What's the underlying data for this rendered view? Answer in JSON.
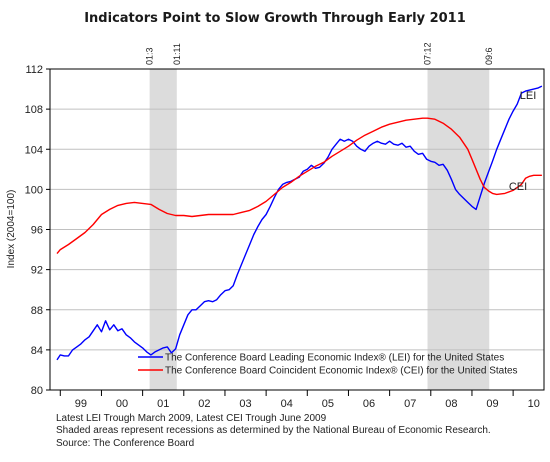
{
  "chart_data": {
    "type": "line",
    "title": "Indicators Point to Slow Growth Through Early 2011",
    "ylabel": "Index (2004=100)",
    "xlabel": "",
    "ylim": [
      80,
      112
    ],
    "y_ticks": [
      80,
      84,
      88,
      92,
      96,
      100,
      104,
      108,
      112
    ],
    "x_range": [
      1998.75,
      2010.75
    ],
    "x_ticks": [
      {
        "label": "99",
        "x": 1999.5
      },
      {
        "label": "00",
        "x": 2000.5
      },
      {
        "label": "01",
        "x": 2001.5
      },
      {
        "label": "02",
        "x": 2002.5
      },
      {
        "label": "03",
        "x": 2003.5
      },
      {
        "label": "04",
        "x": 2004.5
      },
      {
        "label": "05",
        "x": 2005.5
      },
      {
        "label": "06",
        "x": 2006.5
      },
      {
        "label": "07",
        "x": 2007.5
      },
      {
        "label": "08",
        "x": 2008.5
      },
      {
        "label": "09",
        "x": 2009.5
      },
      {
        "label": "10",
        "x": 2010.5
      }
    ],
    "grid": true,
    "recessions": [
      {
        "start": 2001.17,
        "end": 2001.83,
        "start_label": "01:3",
        "end_label": "01:11"
      },
      {
        "start": 2007.92,
        "end": 2009.42,
        "start_label": "07:12",
        "end_label": "09:6"
      }
    ],
    "legend_position": "bottom-right",
    "series": [
      {
        "name": "The Conference Board Leading Economic Index® (LEI) for the United  States",
        "short_label": "LEI",
        "color": "#0000ff",
        "points": [
          [
            1998.92,
            83
          ],
          [
            1999.0,
            83.5
          ],
          [
            1999.1,
            83.4
          ],
          [
            1999.2,
            83.4
          ],
          [
            1999.3,
            84
          ],
          [
            1999.4,
            84.3
          ],
          [
            1999.5,
            84.6
          ],
          [
            1999.6,
            85
          ],
          [
            1999.7,
            85.3
          ],
          [
            1999.8,
            85.9
          ],
          [
            1999.9,
            86.5
          ],
          [
            2000.0,
            85.8
          ],
          [
            2000.1,
            86.9
          ],
          [
            2000.2,
            86
          ],
          [
            2000.3,
            86.5
          ],
          [
            2000.4,
            85.9
          ],
          [
            2000.5,
            86.1
          ],
          [
            2000.6,
            85.5
          ],
          [
            2000.7,
            85.2
          ],
          [
            2000.8,
            84.8
          ],
          [
            2000.9,
            84.5
          ],
          [
            2001.0,
            84.2
          ],
          [
            2001.1,
            83.8
          ],
          [
            2001.2,
            83.5
          ],
          [
            2001.3,
            83.8
          ],
          [
            2001.4,
            84
          ],
          [
            2001.5,
            84.2
          ],
          [
            2001.6,
            84.3
          ],
          [
            2001.7,
            83.7
          ],
          [
            2001.8,
            84.1
          ],
          [
            2001.9,
            85.5
          ],
          [
            2002.0,
            86.5
          ],
          [
            2002.1,
            87.5
          ],
          [
            2002.2,
            88
          ],
          [
            2002.3,
            88
          ],
          [
            2002.4,
            88.4
          ],
          [
            2002.5,
            88.8
          ],
          [
            2002.6,
            88.9
          ],
          [
            2002.7,
            88.8
          ],
          [
            2002.8,
            89
          ],
          [
            2002.9,
            89.5
          ],
          [
            2003.0,
            89.9
          ],
          [
            2003.1,
            90
          ],
          [
            2003.2,
            90.4
          ],
          [
            2003.3,
            91.5
          ],
          [
            2003.4,
            92.5
          ],
          [
            2003.5,
            93.5
          ],
          [
            2003.6,
            94.5
          ],
          [
            2003.7,
            95.5
          ],
          [
            2003.8,
            96.3
          ],
          [
            2003.9,
            97
          ],
          [
            2004.0,
            97.5
          ],
          [
            2004.1,
            98.3
          ],
          [
            2004.2,
            99.2
          ],
          [
            2004.3,
            100
          ],
          [
            2004.4,
            100.5
          ],
          [
            2004.5,
            100.7
          ],
          [
            2004.6,
            100.8
          ],
          [
            2004.7,
            101
          ],
          [
            2004.8,
            101.2
          ],
          [
            2004.9,
            101.8
          ],
          [
            2005.0,
            102
          ],
          [
            2005.1,
            102.4
          ],
          [
            2005.2,
            102.1
          ],
          [
            2005.3,
            102.2
          ],
          [
            2005.4,
            102.6
          ],
          [
            2005.5,
            103.2
          ],
          [
            2005.6,
            104
          ],
          [
            2005.7,
            104.5
          ],
          [
            2005.8,
            105
          ],
          [
            2005.9,
            104.8
          ],
          [
            2006.0,
            105
          ],
          [
            2006.1,
            104.8
          ],
          [
            2006.2,
            104.3
          ],
          [
            2006.3,
            104
          ],
          [
            2006.4,
            103.8
          ],
          [
            2006.5,
            104.3
          ],
          [
            2006.6,
            104.6
          ],
          [
            2006.7,
            104.8
          ],
          [
            2006.8,
            104.6
          ],
          [
            2006.9,
            104.5
          ],
          [
            2007.0,
            104.8
          ],
          [
            2007.1,
            104.5
          ],
          [
            2007.2,
            104.4
          ],
          [
            2007.3,
            104.6
          ],
          [
            2007.4,
            104.2
          ],
          [
            2007.5,
            104.3
          ],
          [
            2007.6,
            103.8
          ],
          [
            2007.7,
            103.5
          ],
          [
            2007.8,
            103.6
          ],
          [
            2007.9,
            103
          ],
          [
            2008.0,
            102.8
          ],
          [
            2008.1,
            102.7
          ],
          [
            2008.2,
            102.4
          ],
          [
            2008.3,
            102.5
          ],
          [
            2008.4,
            101.9
          ],
          [
            2008.5,
            101
          ],
          [
            2008.6,
            100
          ],
          [
            2008.7,
            99.5
          ],
          [
            2008.8,
            99.1
          ],
          [
            2008.9,
            98.7
          ],
          [
            2009.0,
            98.3
          ],
          [
            2009.1,
            98
          ],
          [
            2009.2,
            99.3
          ],
          [
            2009.3,
            100.6
          ],
          [
            2009.4,
            101.7
          ],
          [
            2009.5,
            102.8
          ],
          [
            2009.6,
            104
          ],
          [
            2009.7,
            105
          ],
          [
            2009.8,
            106
          ],
          [
            2009.9,
            107
          ],
          [
            2010.0,
            107.8
          ],
          [
            2010.1,
            108.5
          ],
          [
            2010.2,
            109.6
          ],
          [
            2010.3,
            109.8
          ],
          [
            2010.4,
            109.9
          ],
          [
            2010.5,
            110
          ],
          [
            2010.6,
            110.1
          ],
          [
            2010.7,
            110.3
          ]
        ]
      },
      {
        "name": "The Conference Board Coincident Economic Index® (CEI) for the United States",
        "short_label": "CEI",
        "color": "#ff0000",
        "points": [
          [
            1998.92,
            93.6
          ],
          [
            1999.0,
            94
          ],
          [
            1999.2,
            94.5
          ],
          [
            1999.4,
            95.1
          ],
          [
            1999.6,
            95.7
          ],
          [
            1999.8,
            96.5
          ],
          [
            2000.0,
            97.5
          ],
          [
            2000.2,
            98
          ],
          [
            2000.4,
            98.4
          ],
          [
            2000.6,
            98.6
          ],
          [
            2000.8,
            98.7
          ],
          [
            2001.0,
            98.6
          ],
          [
            2001.2,
            98.5
          ],
          [
            2001.4,
            98
          ],
          [
            2001.6,
            97.6
          ],
          [
            2001.8,
            97.4
          ],
          [
            2002.0,
            97.4
          ],
          [
            2002.2,
            97.3
          ],
          [
            2002.4,
            97.4
          ],
          [
            2002.6,
            97.5
          ],
          [
            2002.8,
            97.5
          ],
          [
            2003.0,
            97.5
          ],
          [
            2003.2,
            97.5
          ],
          [
            2003.4,
            97.7
          ],
          [
            2003.6,
            97.9
          ],
          [
            2003.8,
            98.3
          ],
          [
            2004.0,
            98.8
          ],
          [
            2004.2,
            99.5
          ],
          [
            2004.4,
            100.2
          ],
          [
            2004.6,
            100.7
          ],
          [
            2004.8,
            101.3
          ],
          [
            2005.0,
            101.8
          ],
          [
            2005.2,
            102.3
          ],
          [
            2005.4,
            102.7
          ],
          [
            2005.6,
            103.3
          ],
          [
            2005.8,
            103.8
          ],
          [
            2006.0,
            104.3
          ],
          [
            2006.2,
            104.9
          ],
          [
            2006.4,
            105.4
          ],
          [
            2006.6,
            105.8
          ],
          [
            2006.8,
            106.2
          ],
          [
            2007.0,
            106.5
          ],
          [
            2007.2,
            106.7
          ],
          [
            2007.4,
            106.9
          ],
          [
            2007.6,
            107
          ],
          [
            2007.8,
            107.1
          ],
          [
            2007.92,
            107.1
          ],
          [
            2008.1,
            107
          ],
          [
            2008.3,
            106.6
          ],
          [
            2008.5,
            106
          ],
          [
            2008.7,
            105.2
          ],
          [
            2008.9,
            104
          ],
          [
            2009.0,
            103
          ],
          [
            2009.1,
            102
          ],
          [
            2009.2,
            101
          ],
          [
            2009.3,
            100.2
          ],
          [
            2009.42,
            99.8
          ],
          [
            2009.5,
            99.6
          ],
          [
            2009.6,
            99.5
          ],
          [
            2009.8,
            99.6
          ],
          [
            2010.0,
            99.9
          ],
          [
            2010.2,
            100.5
          ],
          [
            2010.3,
            101.1
          ],
          [
            2010.4,
            101.3
          ],
          [
            2010.5,
            101.4
          ],
          [
            2010.7,
            101.4
          ]
        ]
      }
    ]
  },
  "notes": [
    "Latest LEI Trough March 2009, Latest CEI Trough June 2009",
    "Shaded areas represent recessions as determined by the National Bureau of Economic Research.",
    "Source: The Conference Board"
  ]
}
